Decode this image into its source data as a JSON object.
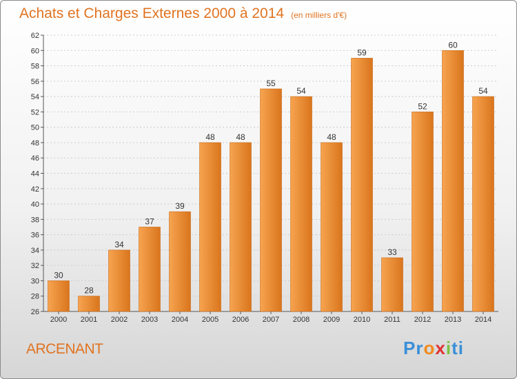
{
  "header": {
    "title": "Achats et Charges Externes 2000 à 2014",
    "subtitle": "(en milliers d'€)"
  },
  "footer": {
    "commune": "ARCENANT",
    "logo_parts": [
      "Pr",
      "o",
      "x",
      "i",
      "ti"
    ]
  },
  "colors": {
    "bar_light": "#f7a450",
    "bar_dark": "#d9751d",
    "title": "#e07320",
    "grid": "#cccccc"
  },
  "chart_data": {
    "type": "bar",
    "title": "Achats et Charges Externes 2000 à 2014",
    "subtitle": "(en milliers d'€)",
    "xlabel": "",
    "ylabel": "",
    "categories": [
      "2000",
      "2001",
      "2002",
      "2003",
      "2004",
      "2005",
      "2006",
      "2007",
      "2008",
      "2009",
      "2010",
      "2011",
      "2012",
      "2013",
      "2014"
    ],
    "values": [
      30,
      28,
      34,
      37,
      39,
      48,
      48,
      55,
      54,
      48,
      59,
      33,
      52,
      60,
      54
    ],
    "ylim": [
      26,
      62
    ],
    "ytick_step": 2,
    "grid": true,
    "legend": "none"
  }
}
